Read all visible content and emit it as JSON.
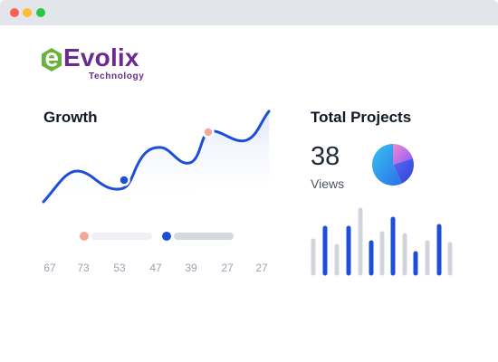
{
  "window": {
    "controls": [
      {
        "name": "close",
        "color": "#ff5f57"
      },
      {
        "name": "minimize",
        "color": "#ffbd2e"
      },
      {
        "name": "maximize",
        "color": "#28c840"
      }
    ]
  },
  "brand": {
    "logo_icon": "evolix-e-logo-icon",
    "wordmark": "Evolix",
    "tagline": "Technology",
    "colors": {
      "green": "#6ab23e",
      "purple": "#6d2a8e"
    }
  },
  "growth": {
    "title": "Growth",
    "tick_labels": [
      "67",
      "73",
      "53",
      "47",
      "39",
      "27",
      "27"
    ],
    "accent_color": "#1d4ed8",
    "highlight_color": "#f5a79d"
  },
  "projects": {
    "title": "Total Projects",
    "count": "38",
    "count_label": "Views",
    "pie_icon": "pie-chart-icon",
    "bar_colors": {
      "blue": "#1d4ed8",
      "gray": "#d1d5db"
    }
  }
}
